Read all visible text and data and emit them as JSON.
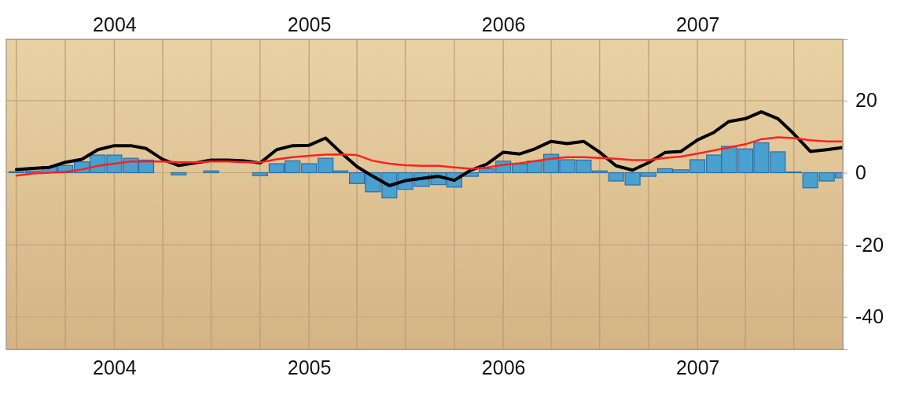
{
  "chart_data": {
    "type": "bar",
    "x": [
      "2003-07",
      "2003-08",
      "2003-09",
      "2003-10",
      "2003-11",
      "2003-12",
      "2004-01",
      "2004-02",
      "2004-03",
      "2004-04",
      "2004-05",
      "2004-06",
      "2004-07",
      "2004-08",
      "2004-09",
      "2004-10",
      "2004-11",
      "2004-12",
      "2005-01",
      "2005-02",
      "2005-03",
      "2005-04",
      "2005-05",
      "2005-06",
      "2005-07",
      "2005-08",
      "2005-09",
      "2005-10",
      "2005-11",
      "2005-12",
      "2006-01",
      "2006-02",
      "2006-03",
      "2006-04",
      "2006-05",
      "2006-06",
      "2006-07",
      "2006-08",
      "2006-09",
      "2006-10",
      "2006-11",
      "2006-12",
      "2007-01",
      "2007-02",
      "2007-03",
      "2007-04",
      "2007-05",
      "2007-06",
      "2007-07",
      "2007-08",
      "2007-09",
      "2007-10"
    ],
    "series": [
      {
        "color": "#4aa0cf",
        "values": [
          0.3,
          0.5,
          1.7,
          2,
          3,
          4.9,
          4.9,
          4,
          3.5,
          0,
          -0.6,
          0,
          0.5,
          0,
          0,
          -0.8,
          2.5,
          3.3,
          2.5,
          4,
          0.5,
          -3,
          -5.3,
          -7,
          -4.6,
          -3.8,
          -3.3,
          -4,
          -1,
          1.1,
          3.2,
          2.4,
          3.2,
          5.1,
          3.6,
          3.5,
          0.5,
          -2.3,
          -3.4,
          -1,
          1.1,
          0.8,
          3.6,
          4.9,
          7.3,
          6.6,
          8.3,
          5.8,
          0.2,
          -4.2,
          -2.3,
          -1.4
        ]
      },
      {
        "type": "line",
        "color": "#000000",
        "values": [
          0.9,
          1.2,
          1.5,
          2.9,
          3.7,
          6.4,
          7.5,
          7.5,
          6.7,
          3.7,
          2,
          2.7,
          3.5,
          3.5,
          3.3,
          2.7,
          6.4,
          7.5,
          7.6,
          9.6,
          5.7,
          1.7,
          -1,
          -3.6,
          -2.2,
          -1.6,
          -1,
          -2.1,
          0.7,
          2.4,
          5.7,
          5.2,
          6.6,
          8.7,
          8.1,
          8.7,
          5.7,
          1.9,
          0.7,
          2.8,
          5.6,
          5.9,
          9.1,
          11.2,
          14.2,
          15,
          16.9,
          15,
          10.8,
          5.9,
          6.4,
          7
        ]
      },
      {
        "type": "line",
        "color": "#ff2020",
        "values": [
          -0.8,
          -0.2,
          0,
          0.2,
          0.9,
          1.9,
          2.5,
          3.1,
          3.1,
          3.1,
          2.9,
          2.9,
          3.1,
          3.1,
          2.9,
          2.9,
          3.7,
          4.3,
          4.7,
          5,
          5.1,
          4.9,
          3.3,
          2.5,
          2.1,
          1.9,
          1.9,
          1.5,
          1.1,
          1.4,
          2.2,
          2.6,
          3.2,
          3.9,
          4.3,
          4.3,
          4.1,
          3.9,
          3.5,
          3.5,
          4.1,
          4.5,
          5.3,
          6.2,
          7,
          7.9,
          9.3,
          9.8,
          9.6,
          9,
          8.7,
          8.7
        ]
      }
    ],
    "xlim": [
      "2003-06-12",
      "2007-10-01"
    ],
    "xticks": [
      {
        "value": "2003-07",
        "label": null
      },
      {
        "value": "2003-10",
        "label": null
      },
      {
        "value": "2004-01",
        "label": "2004"
      },
      {
        "value": "2004-04",
        "label": null
      },
      {
        "value": "2004-07",
        "label": null
      },
      {
        "value": "2004-10",
        "label": null
      },
      {
        "value": "2005-01",
        "label": "2005"
      },
      {
        "value": "2005-04",
        "label": null
      },
      {
        "value": "2005-07",
        "label": null
      },
      {
        "value": "2005-10",
        "label": null
      },
      {
        "value": "2006-01",
        "label": "2006"
      },
      {
        "value": "2006-04",
        "label": null
      },
      {
        "value": "2006-07",
        "label": null
      },
      {
        "value": "2006-10",
        "label": null
      },
      {
        "value": "2007-01",
        "label": "2007"
      },
      {
        "value": "2007-04",
        "label": null
      },
      {
        "value": "2007-07",
        "label": null
      }
    ],
    "x2lim": [
      "2003-06-12",
      "2007-10-01"
    ],
    "x2ticks": [
      {
        "value": "2003-07",
        "label": null
      },
      {
        "value": "2003-10",
        "label": null
      },
      {
        "value": "2004-01",
        "label": "2004"
      },
      {
        "value": "2004-04",
        "label": null
      },
      {
        "value": "2004-07",
        "label": null
      },
      {
        "value": "2004-10",
        "label": null
      },
      {
        "value": "2005-01",
        "label": "2005"
      },
      {
        "value": "2005-04",
        "label": null
      },
      {
        "value": "2005-07",
        "label": null
      },
      {
        "value": "2005-10",
        "label": null
      },
      {
        "value": "2006-01",
        "label": "2006"
      },
      {
        "value": "2006-04",
        "label": null
      },
      {
        "value": "2006-07",
        "label": null
      },
      {
        "value": "2006-10",
        "label": null
      },
      {
        "value": "2007-01",
        "label": "2007"
      },
      {
        "value": "2007-04",
        "label": null
      },
      {
        "value": "2007-07",
        "label": null
      }
    ],
    "ylim": [
      -49,
      37
    ],
    "yticks": [
      20,
      0,
      -20,
      -40
    ],
    "grid": true,
    "line_style": "solid"
  }
}
